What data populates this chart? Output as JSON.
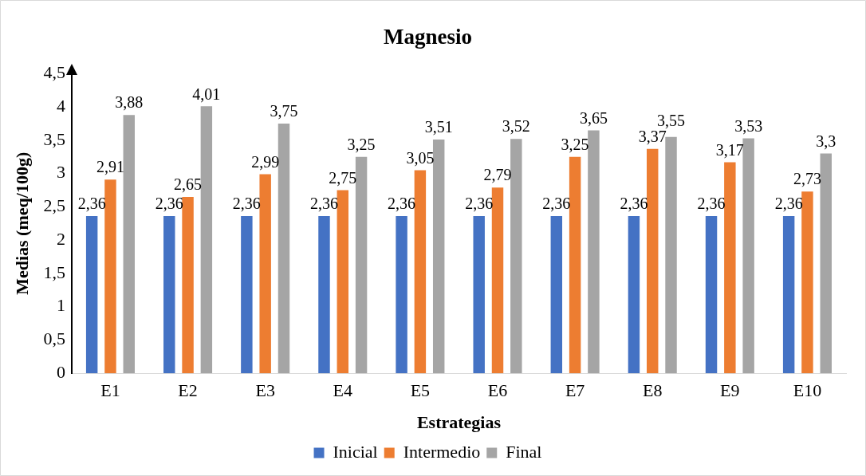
{
  "chart_data": {
    "type": "bar",
    "title": "Magnesio",
    "xlabel": "Estrategias",
    "ylabel": "Medias (meq/100g)",
    "categories": [
      "E1",
      "E2",
      "E3",
      "E4",
      "E5",
      "E6",
      "E7",
      "E8",
      "E9",
      "E10"
    ],
    "series": [
      {
        "name": "Inicial",
        "color": "#4472c4",
        "values": [
          2.36,
          2.36,
          2.36,
          2.36,
          2.36,
          2.36,
          2.36,
          2.36,
          2.36,
          2.36
        ],
        "value_labels": [
          "2,36",
          "2,36",
          "2,36",
          "2,36",
          "2,36",
          "2,36",
          "2,36",
          "2,36",
          "2,36",
          "2,36"
        ]
      },
      {
        "name": "Intermedio",
        "color": "#ed7d31",
        "values": [
          2.91,
          2.65,
          2.99,
          2.75,
          3.05,
          2.79,
          3.25,
          3.37,
          3.17,
          2.73
        ],
        "value_labels": [
          "2,91",
          "2,65",
          "2,99",
          "2,75",
          "3,05",
          "2,79",
          "3,25",
          "3,37",
          "3,17",
          "2,73"
        ]
      },
      {
        "name": "Final",
        "color": "#a5a5a5",
        "values": [
          3.88,
          4.01,
          3.75,
          3.25,
          3.51,
          3.52,
          3.65,
          3.55,
          3.53,
          3.3
        ],
        "value_labels": [
          "3,88",
          "4,01",
          "3,75",
          "3,25",
          "3,51",
          "3,52",
          "3,65",
          "3,55",
          "3,53",
          "3,3"
        ]
      }
    ],
    "ylim": [
      0,
      4.5
    ],
    "yticks": [
      0,
      {
        "value": 0.5,
        "label": "0,5"
      },
      1,
      {
        "value": 1.5,
        "label": "1,5"
      },
      2,
      {
        "value": 2.5,
        "label": "2,5"
      },
      3,
      {
        "value": 3.5,
        "label": "3,5"
      },
      4,
      {
        "value": 4.5,
        "label": "4,5"
      }
    ],
    "grid": false,
    "legend": "bottom"
  }
}
